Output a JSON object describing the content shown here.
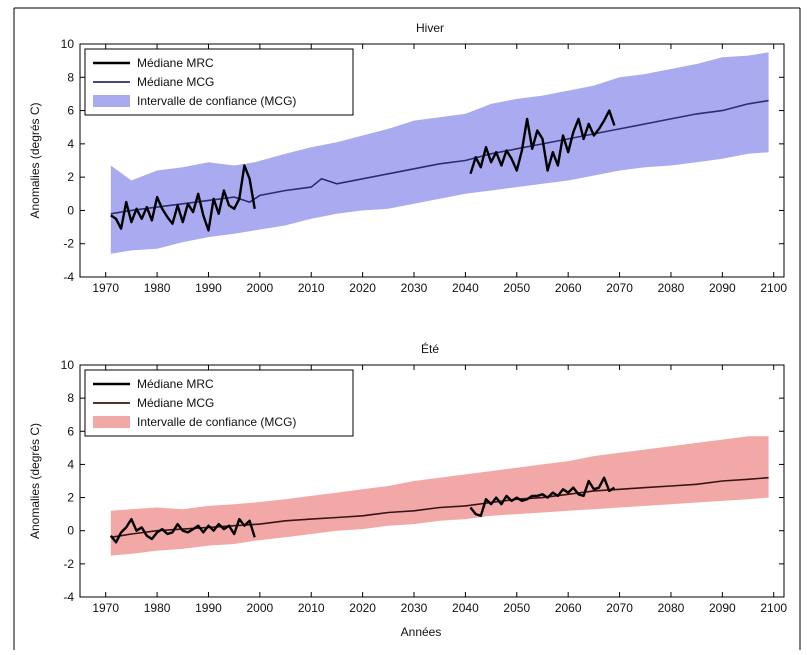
{
  "figure": {
    "xlabel": "Années"
  },
  "chart_data": [
    {
      "type": "line",
      "title": "Hiver",
      "ylabel": "Anomalies (degrés C)",
      "xlim": [
        1965,
        2102
      ],
      "ylim": [
        -4,
        10
      ],
      "xticks": [
        1970,
        1980,
        1990,
        2000,
        2010,
        2020,
        2030,
        2040,
        2050,
        2060,
        2070,
        2080,
        2090,
        2100
      ],
      "yticks": [
        -4,
        -2,
        0,
        2,
        4,
        6,
        8,
        10
      ],
      "legend_position": "top-left",
      "legend": [
        "Médiane MRC",
        "Médiane MCG",
        "Intervalle de confiance (MCG)"
      ],
      "colors": {
        "mrc": "#000000",
        "mcg": "#2a2e6e",
        "band": "#aaaaf0"
      },
      "band": {
        "name": "Intervalle de confiance (MCG)",
        "x": [
          1971,
          1975,
          1980,
          1985,
          1990,
          1995,
          1999,
          2005,
          2010,
          2015,
          2020,
          2025,
          2030,
          2035,
          2040,
          2045,
          2050,
          2055,
          2060,
          2065,
          2070,
          2075,
          2080,
          2085,
          2090,
          2095,
          2099
        ],
        "upper": [
          2.7,
          1.8,
          2.4,
          2.6,
          2.9,
          2.7,
          2.9,
          3.4,
          3.8,
          4.1,
          4.5,
          4.9,
          5.4,
          5.6,
          5.8,
          6.4,
          6.7,
          6.9,
          7.2,
          7.5,
          8.0,
          8.2,
          8.5,
          8.8,
          9.2,
          9.3,
          9.5
        ],
        "lower": [
          -2.6,
          -2.4,
          -2.3,
          -1.9,
          -1.6,
          -1.4,
          -1.2,
          -0.9,
          -0.5,
          -0.2,
          0.0,
          0.1,
          0.4,
          0.7,
          1.0,
          1.2,
          1.4,
          1.6,
          1.8,
          2.1,
          2.4,
          2.6,
          2.7,
          2.9,
          3.1,
          3.4,
          3.5
        ]
      },
      "series": [
        {
          "name": "Médiane MCG",
          "x": [
            1971,
            1975,
            1980,
            1985,
            1990,
            1995,
            1998,
            2000,
            2005,
            2010,
            2012,
            2015,
            2020,
            2025,
            2030,
            2035,
            2040,
            2045,
            2050,
            2055,
            2060,
            2065,
            2070,
            2075,
            2080,
            2085,
            2090,
            2095,
            2099
          ],
          "y": [
            -0.2,
            0.0,
            0.2,
            0.4,
            0.6,
            0.8,
            0.5,
            0.9,
            1.2,
            1.4,
            1.9,
            1.6,
            1.9,
            2.2,
            2.5,
            2.8,
            3.0,
            3.4,
            3.7,
            4.0,
            4.3,
            4.6,
            4.9,
            5.2,
            5.5,
            5.8,
            6.0,
            6.4,
            6.6
          ]
        },
        {
          "name": "Médiane MRC",
          "segments": [
            {
              "x": [
                1971,
                1972,
                1973,
                1974,
                1975,
                1976,
                1977,
                1978,
                1979,
                1980,
                1981,
                1982,
                1983,
                1984,
                1985,
                1986,
                1987,
                1988,
                1989,
                1990,
                1991,
                1992,
                1993,
                1994,
                1995,
                1996,
                1997,
                1998,
                1999
              ],
              "y": [
                -0.3,
                -0.5,
                -1.1,
                0.5,
                -0.7,
                0.1,
                -0.5,
                0.2,
                -0.6,
                0.8,
                0.1,
                -0.4,
                -0.8,
                0.3,
                -0.7,
                0.4,
                -0.1,
                1.0,
                -0.3,
                -1.2,
                0.7,
                -0.2,
                1.2,
                0.3,
                0.1,
                0.7,
                2.7,
                1.9,
                0.1
              ]
            },
            {
              "x": [
                2041,
                2042,
                2043,
                2044,
                2045,
                2046,
                2047,
                2048,
                2049,
                2050,
                2051,
                2052,
                2053,
                2054,
                2055,
                2056,
                2057,
                2058,
                2059,
                2060,
                2061,
                2062,
                2063,
                2064,
                2065,
                2066,
                2067,
                2068,
                2069
              ],
              "y": [
                2.2,
                3.2,
                2.6,
                3.8,
                2.9,
                3.5,
                2.7,
                3.6,
                3.1,
                2.4,
                3.6,
                5.5,
                3.7,
                4.8,
                4.3,
                2.4,
                3.5,
                2.7,
                4.5,
                3.5,
                4.7,
                5.5,
                4.3,
                5.2,
                4.5,
                4.9,
                5.4,
                6.0,
                5.1
              ]
            }
          ]
        }
      ]
    },
    {
      "type": "line",
      "title": "Été",
      "ylabel": "Anomalies (degrés C)",
      "xlim": [
        1965,
        2102
      ],
      "ylim": [
        -4,
        10
      ],
      "xticks": [
        1970,
        1980,
        1990,
        2000,
        2010,
        2020,
        2030,
        2040,
        2050,
        2060,
        2070,
        2080,
        2090,
        2100
      ],
      "yticks": [
        -4,
        -2,
        0,
        2,
        4,
        6,
        8,
        10
      ],
      "legend_position": "top-left",
      "legend": [
        "Médiane MRC",
        "Médiane MCG",
        "Intervalle de confiance (MCG)"
      ],
      "colors": {
        "mrc": "#000000",
        "mcg": "#3a1414",
        "band": "#f3a8a8"
      },
      "band": {
        "name": "Intervalle de confiance (MCG)",
        "x": [
          1971,
          1975,
          1980,
          1985,
          1990,
          1995,
          1999,
          2005,
          2010,
          2015,
          2020,
          2025,
          2030,
          2035,
          2040,
          2045,
          2050,
          2055,
          2060,
          2065,
          2070,
          2075,
          2080,
          2085,
          2090,
          2095,
          2099
        ],
        "upper": [
          1.2,
          1.3,
          1.4,
          1.3,
          1.5,
          1.6,
          1.7,
          1.9,
          2.1,
          2.3,
          2.5,
          2.7,
          3.0,
          3.2,
          3.4,
          3.6,
          3.8,
          4.0,
          4.2,
          4.5,
          4.7,
          4.9,
          5.1,
          5.3,
          5.5,
          5.7,
          5.7
        ],
        "lower": [
          -1.5,
          -1.4,
          -1.2,
          -1.1,
          -0.9,
          -0.8,
          -0.6,
          -0.4,
          -0.2,
          0.0,
          0.1,
          0.3,
          0.4,
          0.6,
          0.7,
          0.9,
          1.0,
          1.1,
          1.2,
          1.3,
          1.4,
          1.5,
          1.6,
          1.7,
          1.8,
          1.9,
          2.0
        ]
      },
      "series": [
        {
          "name": "Médiane MCG",
          "x": [
            1971,
            1975,
            1980,
            1985,
            1990,
            1995,
            2000,
            2005,
            2010,
            2015,
            2020,
            2025,
            2030,
            2035,
            2040,
            2045,
            2050,
            2055,
            2060,
            2065,
            2070,
            2075,
            2080,
            2085,
            2090,
            2095,
            2099
          ],
          "y": [
            -0.4,
            -0.2,
            0.0,
            0.1,
            0.2,
            0.3,
            0.4,
            0.6,
            0.7,
            0.8,
            0.9,
            1.1,
            1.2,
            1.4,
            1.5,
            1.7,
            1.9,
            2.0,
            2.2,
            2.4,
            2.5,
            2.6,
            2.7,
            2.8,
            3.0,
            3.1,
            3.2
          ]
        },
        {
          "name": "Médiane MRC",
          "segments": [
            {
              "x": [
                1971,
                1972,
                1973,
                1974,
                1975,
                1976,
                1977,
                1978,
                1979,
                1980,
                1981,
                1982,
                1983,
                1984,
                1985,
                1986,
                1987,
                1988,
                1989,
                1990,
                1991,
                1992,
                1993,
                1994,
                1995,
                1996,
                1997,
                1998,
                1999
              ],
              "y": [
                -0.3,
                -0.7,
                -0.1,
                0.2,
                0.7,
                0.0,
                0.2,
                -0.3,
                -0.5,
                -0.1,
                0.1,
                -0.2,
                -0.1,
                0.4,
                0.0,
                -0.1,
                0.1,
                0.3,
                -0.1,
                0.3,
                0.0,
                0.4,
                0.1,
                0.3,
                -0.2,
                0.7,
                0.3,
                0.6,
                -0.4
              ]
            },
            {
              "x": [
                2041,
                2042,
                2043,
                2044,
                2045,
                2046,
                2047,
                2048,
                2049,
                2050,
                2051,
                2052,
                2053,
                2054,
                2055,
                2056,
                2057,
                2058,
                2059,
                2060,
                2061,
                2062,
                2063,
                2064,
                2065,
                2066,
                2067,
                2068,
                2069
              ],
              "y": [
                1.4,
                1.0,
                0.9,
                1.9,
                1.6,
                2.0,
                1.6,
                2.1,
                1.8,
                2.0,
                1.8,
                1.9,
                2.1,
                2.1,
                2.2,
                2.0,
                2.3,
                2.1,
                2.5,
                2.3,
                2.6,
                2.2,
                2.1,
                3.0,
                2.5,
                2.6,
                3.2,
                2.4,
                2.6
              ]
            }
          ]
        }
      ]
    }
  ]
}
